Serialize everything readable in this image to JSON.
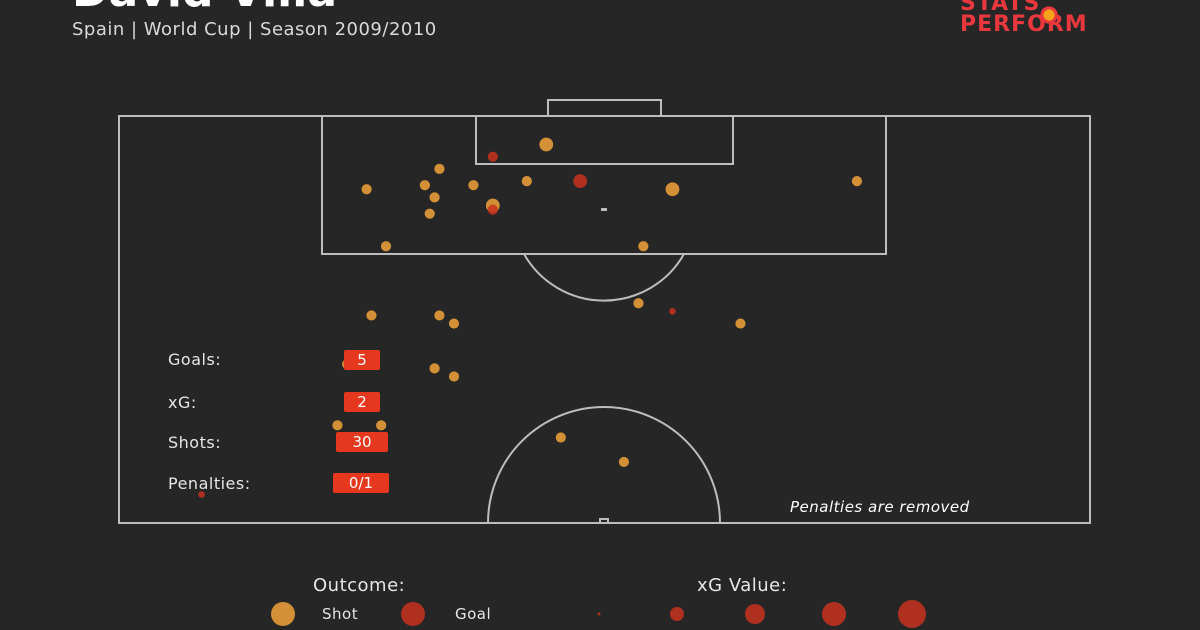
{
  "header": {
    "title": "David Villa",
    "subtitle": "Spain | World Cup | Season 2009/2010"
  },
  "logo": {
    "line1": "STATS",
    "line2": "PERFORM"
  },
  "stats": [
    {
      "label": "Goals:",
      "value": "5"
    },
    {
      "label": "xG:",
      "value": "2"
    },
    {
      "label": "Shots:",
      "value": "30"
    },
    {
      "label": "Penalties:",
      "value": "0/1"
    }
  ],
  "note": "Penalties are removed",
  "legend": {
    "outcome_title": "Outcome:",
    "outcome_items": [
      "Shot",
      "Goal"
    ],
    "xg_title": "xG Value:"
  },
  "colors": {
    "background": "#262626",
    "shot": "#f2a33a",
    "goal": "#c8321e",
    "badge": "#e5381e",
    "lines": "#bdbdbd"
  },
  "chart_data": {
    "type": "scatter",
    "pitch_units": "StatsPerform 0-100 (x = across pitch, y = distance toward goal)",
    "series": [
      {
        "name": "Shot",
        "points": [
          {
            "x": 44.0,
            "y": 96.5,
            "size": 3
          },
          {
            "x": 33.0,
            "y": 93.5,
            "size": 2
          },
          {
            "x": 25.5,
            "y": 91.0,
            "size": 2
          },
          {
            "x": 31.5,
            "y": 91.5,
            "size": 2
          },
          {
            "x": 32.5,
            "y": 90.0,
            "size": 2
          },
          {
            "x": 36.5,
            "y": 91.5,
            "size": 2
          },
          {
            "x": 42.0,
            "y": 92.0,
            "size": 2
          },
          {
            "x": 38.5,
            "y": 89.0,
            "size": 3
          },
          {
            "x": 57.0,
            "y": 91.0,
            "size": 3
          },
          {
            "x": 76.0,
            "y": 92.0,
            "size": 2
          },
          {
            "x": 32.0,
            "y": 88.0,
            "size": 2
          },
          {
            "x": 27.5,
            "y": 84.0,
            "size": 2
          },
          {
            "x": 54.0,
            "y": 84.0,
            "size": 2
          },
          {
            "x": 53.5,
            "y": 77.0,
            "size": 2
          },
          {
            "x": 26.0,
            "y": 75.5,
            "size": 2
          },
          {
            "x": 33.0,
            "y": 75.5,
            "size": 2
          },
          {
            "x": 34.5,
            "y": 74.5,
            "size": 2
          },
          {
            "x": 64.0,
            "y": 74.5,
            "size": 2
          },
          {
            "x": 23.5,
            "y": 69.5,
            "size": 2
          },
          {
            "x": 32.5,
            "y": 69.0,
            "size": 2
          },
          {
            "x": 34.5,
            "y": 68.0,
            "size": 2
          },
          {
            "x": 22.5,
            "y": 62.0,
            "size": 2
          },
          {
            "x": 27.0,
            "y": 62.0,
            "size": 2
          },
          {
            "x": 45.5,
            "y": 60.5,
            "size": 2
          },
          {
            "x": 52.0,
            "y": 57.5,
            "size": 2
          }
        ]
      },
      {
        "name": "Goal",
        "points": [
          {
            "x": 38.5,
            "y": 95.0,
            "size": 2
          },
          {
            "x": 47.5,
            "y": 92.0,
            "size": 3
          },
          {
            "x": 38.5,
            "y": 88.5,
            "size": 2
          },
          {
            "x": 57.0,
            "y": 76.0,
            "size": 1
          },
          {
            "x": 8.5,
            "y": 53.5,
            "size": 1
          }
        ]
      }
    ],
    "xg_legend_sizes": [
      1,
      2,
      3,
      4,
      5
    ]
  }
}
